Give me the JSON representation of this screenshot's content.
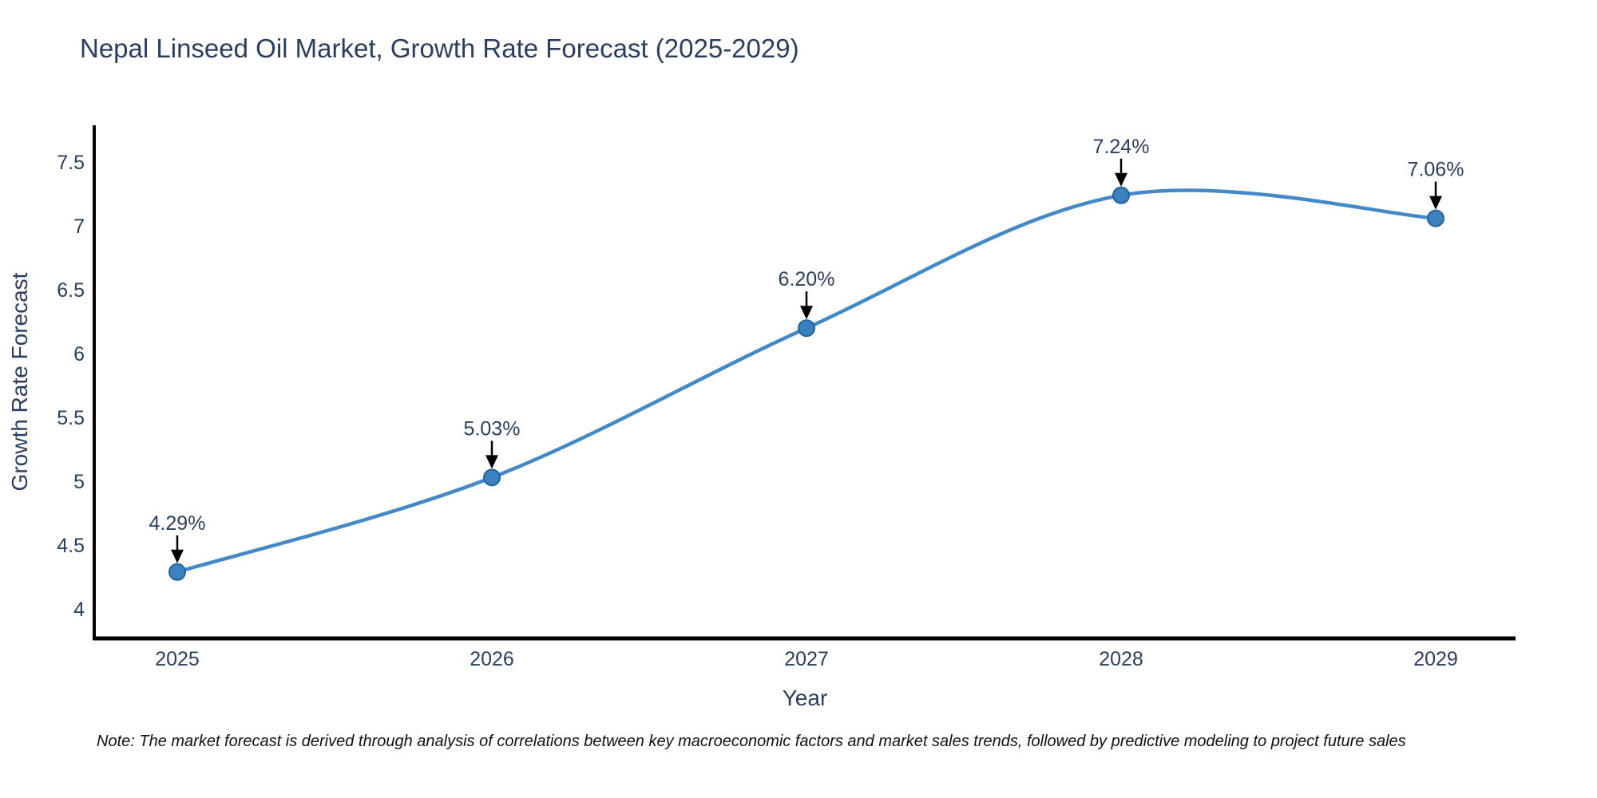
{
  "title": "Nepal Linseed Oil Market, Growth Rate Forecast (2025-2029)",
  "note": "Note: The market forecast is derived through analysis of correlations between key macroeconomic factors and market sales trends, followed by predictive modeling to project future sales",
  "chart_data": {
    "type": "line",
    "title": "Nepal Linseed Oil Market, Growth Rate Forecast (2025-2029)",
    "x": [
      2025,
      2026,
      2027,
      2028,
      2029
    ],
    "y": [
      4.29,
      5.03,
      6.2,
      7.24,
      7.06
    ],
    "point_labels": [
      "4.29%",
      "5.03%",
      "6.20%",
      "7.24%",
      "7.06%"
    ],
    "xlabel": "Year",
    "ylabel": "Growth Rate Forecast",
    "yticks": [
      4,
      4.5,
      5,
      5.5,
      6,
      6.5,
      7,
      7.5
    ],
    "ytick_labels": [
      "4",
      "4.5",
      "5",
      "5.5",
      "6",
      "6.5",
      "7",
      "7.5"
    ],
    "xtick_labels": [
      "2025",
      "2026",
      "2027",
      "2028",
      "2029"
    ],
    "ylim": [
      3.77,
      7.79
    ],
    "line_shape": "spline",
    "grid": false,
    "legend": "none",
    "colors": {
      "line": "#4389c8",
      "marker_fill": "#3b80bf",
      "marker_edge": "#24639c",
      "axis_line": "#000000",
      "tick_text": "#2a3f5f",
      "axis_title_text": "#2a3f5f",
      "annotation_text": "#2a3f5f",
      "arrow": "#000000",
      "title_text": "#2a3f5f",
      "note_text": "#111111"
    }
  }
}
